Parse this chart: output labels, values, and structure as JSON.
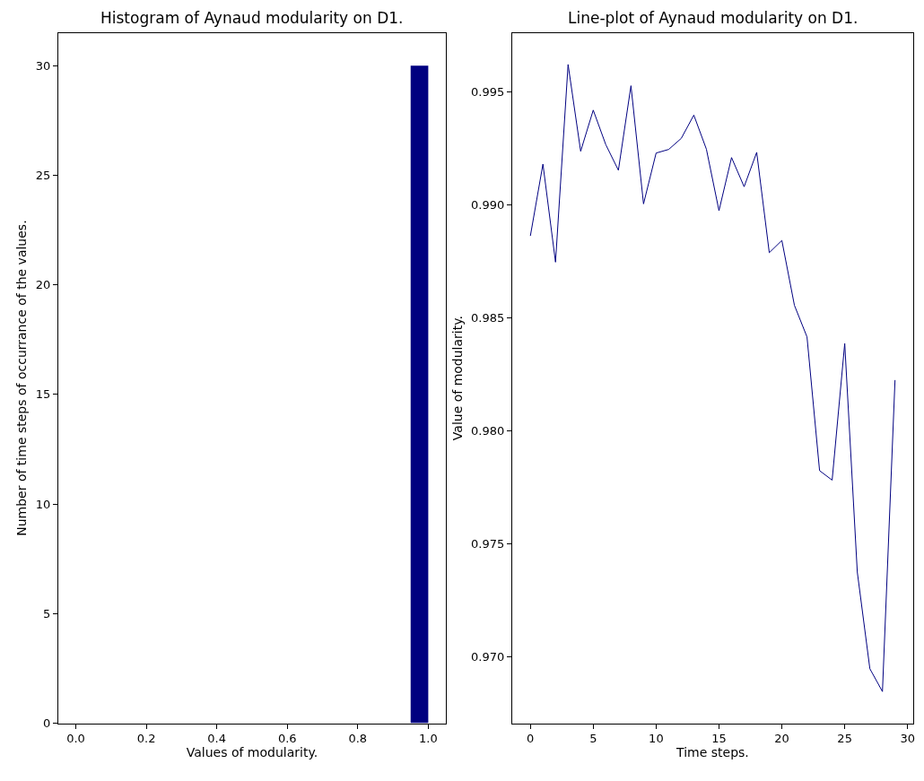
{
  "chart_data": [
    {
      "type": "histogram",
      "title": "Histogram of Aynaud modularity on D1.",
      "xlabel": "Values of modularity.",
      "ylabel": "Number of time steps of occurrance of the values.",
      "bins": [
        0.0,
        0.05,
        0.1,
        0.15,
        0.2,
        0.25,
        0.3,
        0.35,
        0.4,
        0.45,
        0.5,
        0.55,
        0.6,
        0.65,
        0.7,
        0.75,
        0.8,
        0.85,
        0.9,
        0.95,
        1.0
      ],
      "values": [
        0,
        0,
        0,
        0,
        0,
        0,
        0,
        0,
        0,
        0,
        0,
        0,
        0,
        0,
        0,
        0,
        0,
        0,
        0,
        30
      ],
      "color": "#000080",
      "xlim": [
        -0.05,
        1.05
      ],
      "ylim": [
        0,
        31.5
      ],
      "xticks": [
        {
          "value": 0,
          "label": "0.0"
        },
        {
          "value": 0.2,
          "label": "0.2"
        },
        {
          "value": 0.4,
          "label": "0.4"
        },
        {
          "value": 0.6,
          "label": "0.6"
        },
        {
          "value": 0.8,
          "label": "0.8"
        },
        {
          "value": 1,
          "label": "1.0"
        }
      ],
      "yticks": [
        0,
        5,
        10,
        15,
        20,
        25,
        30
      ]
    },
    {
      "type": "line",
      "title": "Line-plot of Aynaud modularity on D1.",
      "xlabel": "Time steps.",
      "ylabel": "Value of modularity.",
      "x": [
        0,
        1,
        2,
        3,
        4,
        5,
        6,
        7,
        8,
        9,
        10,
        11,
        12,
        13,
        14,
        15,
        16,
        17,
        18,
        19,
        20,
        21,
        22,
        23,
        24,
        25,
        26,
        27,
        28,
        29
      ],
      "values": [
        0.98863,
        0.99181,
        0.98747,
        0.99622,
        0.99238,
        0.9942,
        0.99267,
        0.99154,
        0.99528,
        0.99005,
        0.9923,
        0.99246,
        0.99295,
        0.99398,
        0.99247,
        0.98975,
        0.9921,
        0.99081,
        0.99233,
        0.98789,
        0.98843,
        0.98556,
        0.98416,
        0.97824,
        0.97782,
        0.98387,
        0.97375,
        0.96947,
        0.96846,
        0.98225
      ],
      "color": "#000080",
      "xlim": [
        -1.45,
        30.45
      ],
      "ylim": [
        0.96706,
        0.99762
      ],
      "xticks": [
        0,
        5,
        10,
        15,
        20,
        25,
        30
      ],
      "yticks": [
        {
          "value": 0.97,
          "label": "0.970"
        },
        {
          "value": 0.975,
          "label": "0.975"
        },
        {
          "value": 0.98,
          "label": "0.980"
        },
        {
          "value": 0.985,
          "label": "0.985"
        },
        {
          "value": 0.99,
          "label": "0.990"
        },
        {
          "value": 0.995,
          "label": "0.995"
        }
      ],
      "marker": "none",
      "line_style": "solid"
    }
  ]
}
